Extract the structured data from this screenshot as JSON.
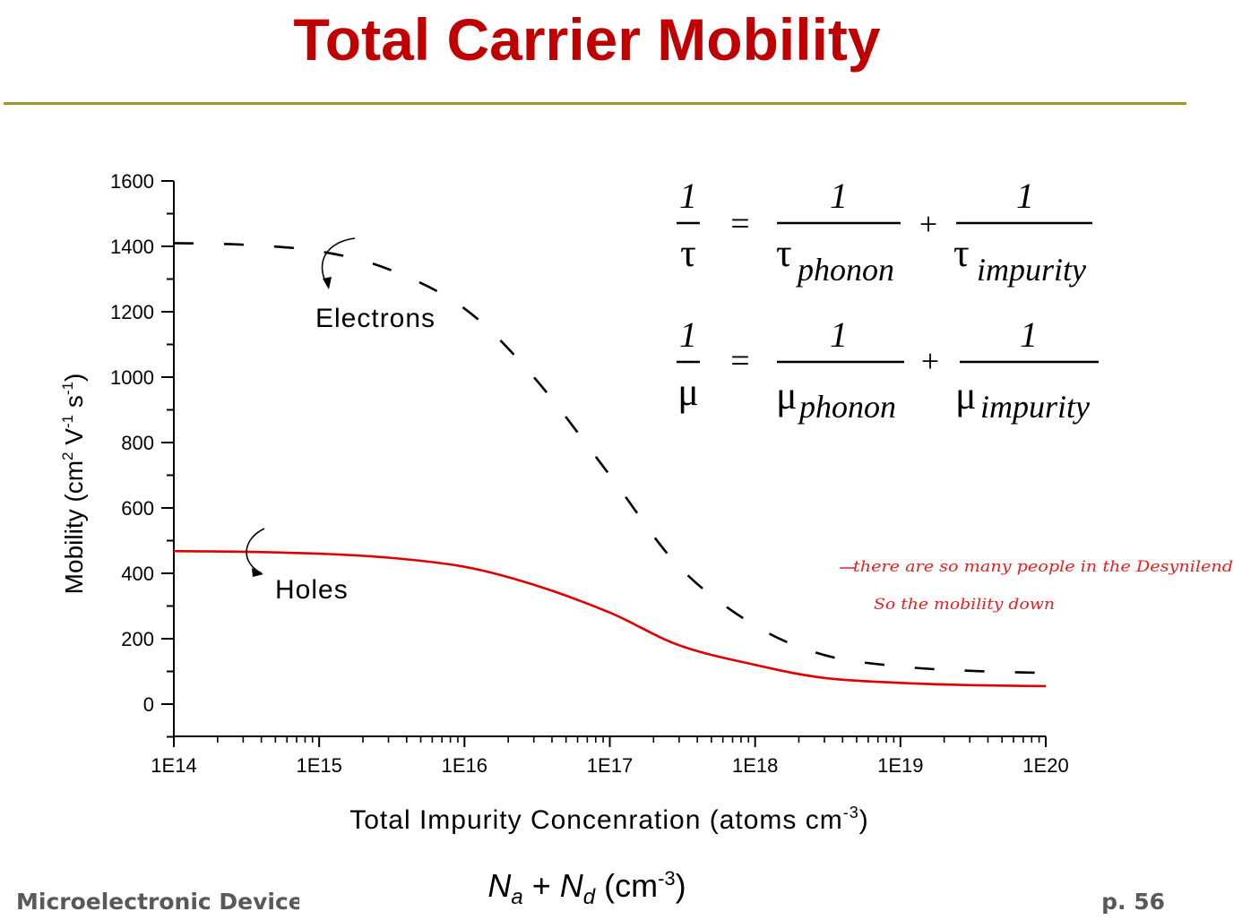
{
  "slide": {
    "title": "Total Carrier Mobility",
    "footer_left": "Microelectronic Devices",
    "footer_right": "p. 56",
    "formula": {
      "n_a": "N",
      "sub_a": "a",
      "plus": " + ",
      "n_d": "N",
      "sub_d": "d",
      "unit_open": " (cm",
      "unit_exp": "-3",
      "unit_close": ")"
    }
  },
  "equations": {
    "tau": {
      "lhs_num": "1",
      "lhs_den": "τ",
      "eq": "=",
      "t1_num": "1",
      "t1_den_sym": "τ",
      "t1_den_sub": "phonon",
      "plus": "+",
      "t2_num": "1",
      "t2_den_sym": "τ",
      "t2_den_sub": "impurity"
    },
    "mu": {
      "lhs_num": "1",
      "lhs_den": "μ",
      "eq": "=",
      "t1_num": "1",
      "t1_den_sym": "μ",
      "t1_den_sub": "phonon",
      "plus": "+",
      "t2_num": "1",
      "t2_den_sym": "μ",
      "t2_den_sub": "impurity"
    }
  },
  "handwritten_note": {
    "line1": "there are so many people in the Desynilend",
    "line2": "So the mobility down",
    "color": "#e52020"
  },
  "chart_data": {
    "type": "line",
    "xlabel": "Total Impurity Concenration (atoms cm",
    "xlabel_exp": "-3",
    "xlabel_close": ")",
    "ylabel_parts": {
      "base": "Mobility (cm",
      "e1": "2",
      "mid": " V",
      "e2": "-1",
      "s": " s",
      "e3": "-1",
      "close": ")"
    },
    "xscale": "log",
    "xlim": [
      100000000000000.0,
      1e+20
    ],
    "ylim": [
      0,
      1600
    ],
    "x_ticks": [
      100000000000000.0,
      1000000000000000.0,
      1e+16,
      1e+17,
      1e+18,
      1e+19,
      1e+20
    ],
    "x_tick_labels": [
      "1E14",
      "1E15",
      "1E16",
      "1E17",
      "1E18",
      "1E19",
      "1E20"
    ],
    "y_ticks": [
      0,
      200,
      400,
      600,
      800,
      1000,
      1200,
      1400,
      1600
    ],
    "y_tick_labels": [
      "0",
      "200",
      "400",
      "600",
      "800",
      "1000",
      "1200",
      "1400",
      "1600"
    ],
    "series": [
      {
        "name": "Electrons",
        "style": "dashed",
        "color": "#000000",
        "x": [
          100000000000000.0,
          300000000000000.0,
          1000000000000000.0,
          3000000000000000.0,
          1e+16,
          3e+16,
          1e+17,
          3e+17,
          1e+18,
          3e+18,
          1e+19,
          3e+19,
          1e+20
        ],
        "y": [
          1410,
          1405,
          1385,
          1330,
          1210,
          1000,
          700,
          420,
          240,
          150,
          115,
          102,
          95
        ]
      },
      {
        "name": "Holes",
        "style": "solid",
        "color": "#e00000",
        "x": [
          100000000000000.0,
          300000000000000.0,
          1000000000000000.0,
          3000000000000000.0,
          1e+16,
          3e+16,
          1e+17,
          3e+17,
          1e+18,
          3e+18,
          1e+19,
          3e+19,
          1e+20
        ],
        "y": [
          468,
          466,
          460,
          448,
          420,
          365,
          280,
          180,
          120,
          80,
          65,
          58,
          55
        ]
      }
    ]
  }
}
